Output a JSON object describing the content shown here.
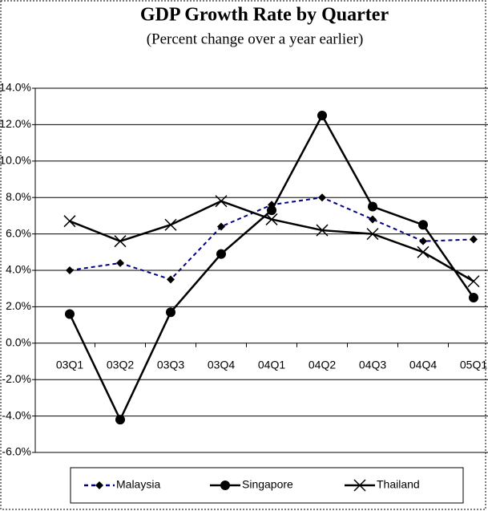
{
  "chart_data": {
    "type": "line",
    "title": "GDP Growth Rate by Quarter",
    "subtitle": "(Percent change over a year earlier)",
    "categories": [
      "03Q1",
      "03Q2",
      "03Q3",
      "03Q4",
      "04Q1",
      "04Q2",
      "04Q3",
      "04Q4",
      "05Q1"
    ],
    "series": [
      {
        "name": "Malaysia",
        "color": "#000080",
        "values": [
          4.0,
          4.4,
          3.5,
          6.4,
          7.6,
          8.0,
          6.8,
          5.6,
          5.7
        ]
      },
      {
        "name": "Singapore",
        "color": "#000000",
        "values": [
          1.6,
          -4.2,
          1.7,
          4.9,
          7.3,
          12.5,
          7.5,
          6.5,
          2.5
        ]
      },
      {
        "name": "Thailand",
        "color": "#000000",
        "values": [
          6.7,
          5.6,
          6.5,
          7.8,
          6.8,
          6.2,
          6.0,
          5.0,
          3.4
        ]
      }
    ],
    "ylim": [
      -6,
      14
    ],
    "yticks": [
      {
        "value": -6,
        "label": "-6.0%"
      },
      {
        "value": -4,
        "label": "-4.0%"
      },
      {
        "value": -2,
        "label": "-2.0%"
      },
      {
        "value": 0,
        "label": "0.0%"
      },
      {
        "value": 2,
        "label": "2.0%"
      },
      {
        "value": 4,
        "label": "4.0%"
      },
      {
        "value": 6,
        "label": "6.0%"
      },
      {
        "value": 8,
        "label": "8.0%"
      },
      {
        "value": 10,
        "label": "10.0%"
      },
      {
        "value": 12,
        "label": "12.0%"
      },
      {
        "value": 14,
        "label": "14.0%"
      }
    ],
    "grid": true,
    "legend": "bottom"
  }
}
